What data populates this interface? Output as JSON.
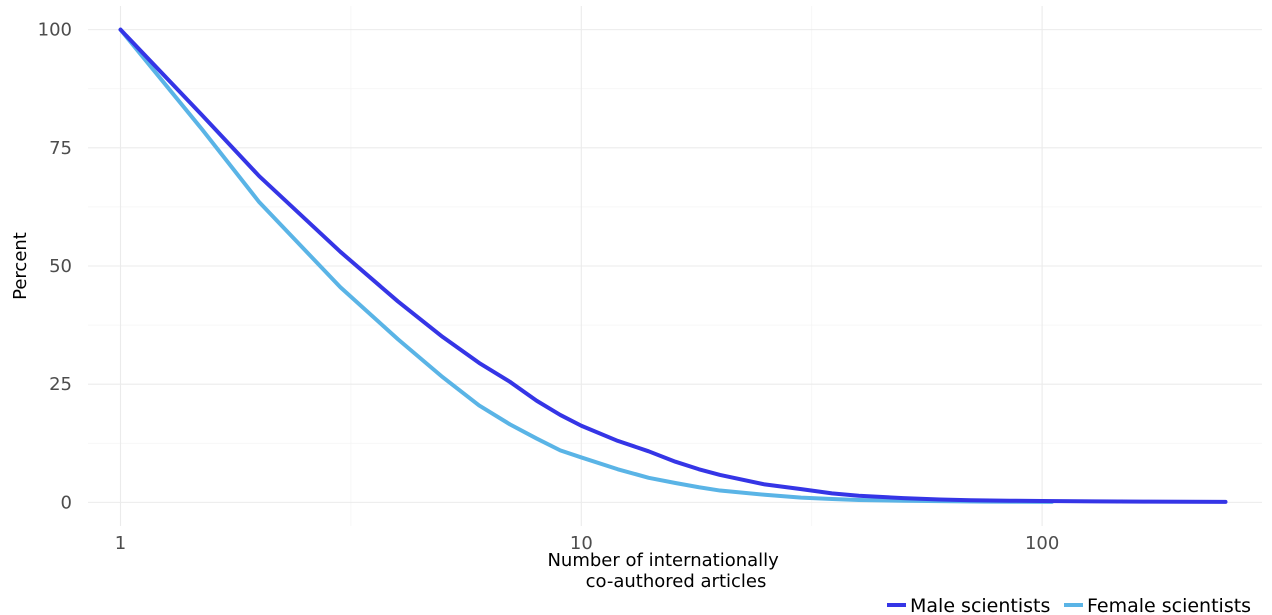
{
  "chart_data": {
    "type": "line",
    "xlabel": "Number of internationally co-authored articles",
    "xlabel_lines": [
      "Number of internationally",
      "co-authored articles"
    ],
    "ylabel": "Percent",
    "x_scale": "log10",
    "xlim": [
      0.85,
      300
    ],
    "ylim": [
      -5,
      105
    ],
    "x_ticks": [
      1,
      10,
      100
    ],
    "x_tick_labels": [
      "1",
      "10",
      "100"
    ],
    "y_ticks": [
      0,
      25,
      50,
      75,
      100
    ],
    "y_tick_labels": [
      "0",
      "25",
      "50",
      "75",
      "100"
    ],
    "grid": true,
    "legend_position": "bottom-right",
    "series": [
      {
        "name": "Male scientists",
        "color": "#3535e6",
        "points": [
          [
            1,
            100
          ],
          [
            1.5,
            82
          ],
          [
            2,
            69
          ],
          [
            3,
            53
          ],
          [
            4,
            42.5
          ],
          [
            5,
            35
          ],
          [
            6,
            29.5
          ],
          [
            7,
            25.5
          ],
          [
            8,
            21.5
          ],
          [
            9,
            18.5
          ],
          [
            10,
            16.2
          ],
          [
            12,
            13
          ],
          [
            14,
            10.8
          ],
          [
            16,
            8.6
          ],
          [
            18,
            7
          ],
          [
            20,
            5.8
          ],
          [
            25,
            3.8
          ],
          [
            30,
            2.8
          ],
          [
            35,
            1.9
          ],
          [
            40,
            1.4
          ],
          [
            50,
            0.9
          ],
          [
            60,
            0.6
          ],
          [
            70,
            0.45
          ],
          [
            85,
            0.35
          ],
          [
            100,
            0.28
          ],
          [
            130,
            0.2
          ],
          [
            170,
            0.15
          ],
          [
            250,
            0.1
          ]
        ]
      },
      {
        "name": "Female scientists",
        "color": "#5ab4e6",
        "points": [
          [
            1,
            100
          ],
          [
            1.5,
            79
          ],
          [
            2,
            63.5
          ],
          [
            3,
            45.5
          ],
          [
            4,
            34.5
          ],
          [
            5,
            26.5
          ],
          [
            6,
            20.5
          ],
          [
            7,
            16.5
          ],
          [
            8,
            13.5
          ],
          [
            9,
            11
          ],
          [
            10,
            9.5
          ],
          [
            12,
            7
          ],
          [
            14,
            5.2
          ],
          [
            16,
            4.1
          ],
          [
            18,
            3.2
          ],
          [
            20,
            2.5
          ],
          [
            25,
            1.6
          ],
          [
            30,
            1
          ],
          [
            35,
            0.7
          ],
          [
            40,
            0.5
          ],
          [
            50,
            0.35
          ],
          [
            60,
            0.25
          ],
          [
            75,
            0.15
          ],
          [
            90,
            0.12
          ],
          [
            105,
            0.1
          ]
        ]
      }
    ]
  }
}
